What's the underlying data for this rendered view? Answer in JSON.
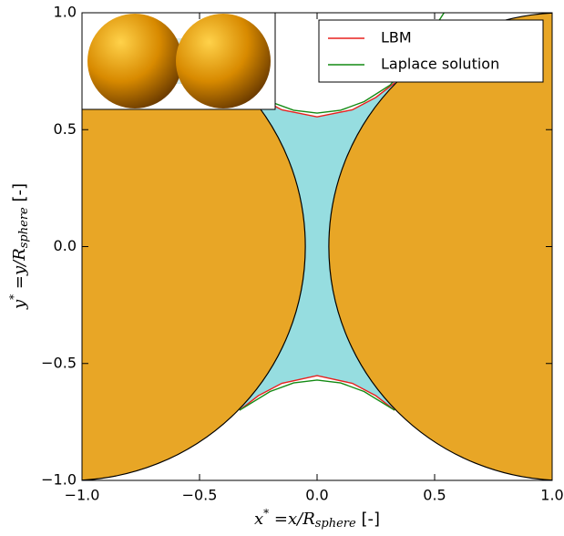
{
  "chart_data": {
    "type": "line",
    "xlabel": [
      "x",
      "*",
      " =x/R",
      "sphere",
      " [-]"
    ],
    "ylabel": [
      "y",
      "*",
      " =y/R",
      "sphere",
      " [-]"
    ],
    "xlim": [
      -1.0,
      1.0
    ],
    "ylim": [
      -1.0,
      1.0
    ],
    "xticks": [
      {
        "value": -1.0,
        "label": "−1.0"
      },
      {
        "value": -0.5,
        "label": "−0.5"
      },
      {
        "value": 0.0,
        "label": "0.0"
      },
      {
        "value": 0.5,
        "label": "0.5"
      },
      {
        "value": 1.0,
        "label": "1.0"
      }
    ],
    "yticks": [
      {
        "value": -1.0,
        "label": "−1.0"
      },
      {
        "value": -0.5,
        "label": "−0.5"
      },
      {
        "value": 0.0,
        "label": "0.0"
      },
      {
        "value": 0.5,
        "label": "0.5"
      },
      {
        "value": 1.0,
        "label": "1.0"
      }
    ],
    "spheres": [
      {
        "cx": -1.05,
        "cy": 0,
        "r": 1,
        "color": "#e8a626"
      },
      {
        "cx": 1.05,
        "cy": 0,
        "r": 1,
        "color": "#e8a626"
      }
    ],
    "bridge_color": "#96dde0",
    "legend": "upper right",
    "series": [
      {
        "name": "LBM",
        "color": "#e8201e",
        "x": [
          -0.33,
          -0.25,
          -0.15,
          0,
          0.15,
          0.25,
          0.33,
          null,
          -0.33,
          -0.25,
          -0.15,
          0,
          0.15,
          0.25,
          0.33
        ],
        "values": [
          0.7,
          0.638,
          0.585,
          0.555,
          0.585,
          0.638,
          0.7,
          null,
          -0.7,
          -0.638,
          -0.585,
          -0.552,
          -0.585,
          -0.638,
          -0.7
        ]
      },
      {
        "name": "Laplace solution",
        "color": "#138a13",
        "x": [
          -0.31,
          -0.2,
          -0.1,
          0,
          0.1,
          0.2,
          0.31,
          0.4,
          0.47,
          0.54,
          null,
          -0.33,
          -0.2,
          -0.1,
          0,
          0.1,
          0.2,
          0.33
        ],
        "values": [
          0.69,
          0.62,
          0.583,
          0.571,
          0.583,
          0.62,
          0.69,
          0.79,
          0.89,
          1.0,
          null,
          -0.7,
          -0.62,
          -0.583,
          -0.571,
          -0.583,
          -0.62,
          -0.7
        ]
      }
    ]
  }
}
